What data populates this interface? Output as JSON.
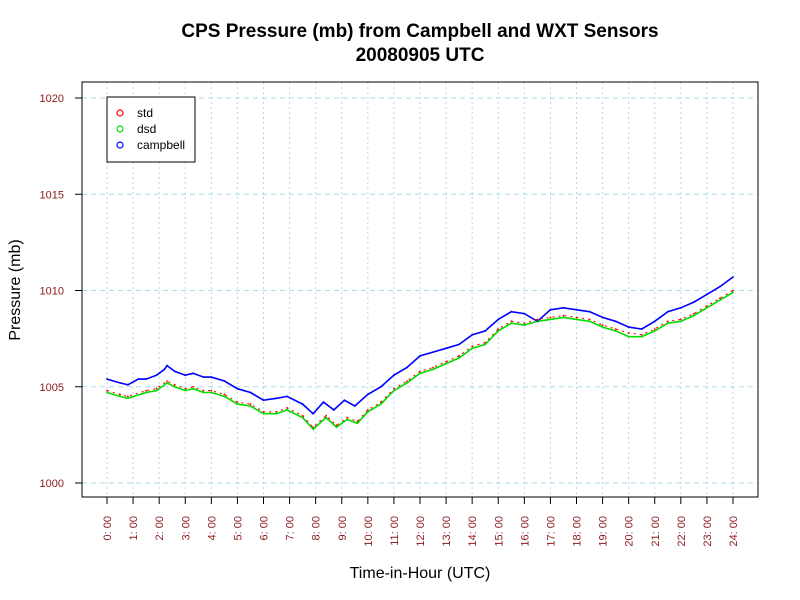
{
  "chart_data": {
    "type": "line",
    "title": "CPS Pressure (mb) from Campbell and WXT Sensors",
    "subtitle": "20080905  UTC",
    "xlabel": "Time-in-Hour (UTC)",
    "ylabel": "Pressure (mb)",
    "xlim": [
      0,
      24
    ],
    "ylim": [
      1000,
      1020
    ],
    "x_ticks": [
      0,
      1,
      2,
      3,
      4,
      5,
      6,
      7,
      8,
      9,
      10,
      11,
      12,
      13,
      14,
      15,
      16,
      17,
      18,
      19,
      20,
      21,
      22,
      23,
      24
    ],
    "x_tick_labels": [
      "0: 00",
      "1: 00",
      "2: 00",
      "3: 00",
      "4: 00",
      "5: 00",
      "6: 00",
      "7: 00",
      "8: 00",
      "9: 00",
      "10: 00",
      "11: 00",
      "12: 00",
      "13: 00",
      "14: 00",
      "15: 00",
      "16: 00",
      "17: 00",
      "18: 00",
      "19: 00",
      "20: 00",
      "21: 00",
      "22: 00",
      "23: 00",
      "24: 00"
    ],
    "y_ticks": [
      1000,
      1005,
      1010,
      1015,
      1020
    ],
    "y_tick_labels": [
      "1000",
      "1005",
      "1010",
      "1015",
      "1020"
    ],
    "grid": true,
    "legend_position": "top-left",
    "series": [
      {
        "name": "std",
        "color": "#ff0000",
        "x": [
          0,
          0.5,
          0.8,
          1.5,
          1.9,
          2.3,
          2.6,
          3.0,
          3.3,
          3.7,
          4.0,
          4.5,
          5.0,
          5.5,
          6.0,
          6.5,
          6.9,
          7.5,
          7.9,
          8.4,
          8.8,
          9.2,
          9.6,
          10.0,
          10.5,
          11.0,
          11.5,
          12.0,
          12.5,
          13.0,
          13.5,
          14.0,
          14.5,
          15.0,
          15.5,
          16.0,
          16.5,
          17.0,
          17.5,
          18.0,
          18.5,
          19.0,
          19.5,
          20.0,
          20.5,
          21.0,
          21.5,
          22.0,
          22.5,
          23.0,
          23.5,
          24.0
        ],
        "y": [
          1004.8,
          1004.6,
          1004.5,
          1004.8,
          1004.9,
          1005.3,
          1005.1,
          1004.9,
          1005.0,
          1004.8,
          1004.8,
          1004.6,
          1004.2,
          1004.1,
          1003.7,
          1003.7,
          1003.9,
          1003.5,
          1002.9,
          1003.5,
          1003.0,
          1003.4,
          1003.2,
          1003.8,
          1004.2,
          1004.9,
          1005.3,
          1005.8,
          1006.0,
          1006.3,
          1006.6,
          1007.1,
          1007.3,
          1008.0,
          1008.4,
          1008.3,
          1008.5,
          1008.6,
          1008.7,
          1008.6,
          1008.5,
          1008.2,
          1008.0,
          1007.8,
          1007.7,
          1008.0,
          1008.4,
          1008.5,
          1008.8,
          1009.2,
          1009.6,
          1010.0
        ]
      },
      {
        "name": "dsd",
        "color": "#00dd00",
        "x": [
          0,
          0.5,
          0.8,
          1.5,
          1.9,
          2.3,
          2.6,
          3.0,
          3.3,
          3.7,
          4.0,
          4.5,
          5.0,
          5.5,
          6.0,
          6.5,
          6.9,
          7.5,
          7.9,
          8.4,
          8.8,
          9.2,
          9.6,
          10.0,
          10.5,
          11.0,
          11.5,
          12.0,
          12.5,
          13.0,
          13.5,
          14.0,
          14.5,
          15.0,
          15.5,
          16.0,
          16.5,
          17.0,
          17.5,
          18.0,
          18.5,
          19.0,
          19.5,
          20.0,
          20.5,
          21.0,
          21.5,
          22.0,
          22.5,
          23.0,
          23.5,
          24.0
        ],
        "y": [
          1004.7,
          1004.5,
          1004.4,
          1004.7,
          1004.8,
          1005.2,
          1005.0,
          1004.8,
          1004.9,
          1004.7,
          1004.7,
          1004.5,
          1004.1,
          1004.0,
          1003.6,
          1003.6,
          1003.8,
          1003.4,
          1002.8,
          1003.4,
          1002.9,
          1003.3,
          1003.1,
          1003.7,
          1004.1,
          1004.8,
          1005.2,
          1005.7,
          1005.9,
          1006.2,
          1006.5,
          1007.0,
          1007.2,
          1007.9,
          1008.3,
          1008.2,
          1008.4,
          1008.5,
          1008.6,
          1008.5,
          1008.4,
          1008.1,
          1007.9,
          1007.6,
          1007.6,
          1007.9,
          1008.3,
          1008.4,
          1008.7,
          1009.1,
          1009.5,
          1009.9
        ]
      },
      {
        "name": "campbell",
        "color": "#0000ff",
        "x": [
          0,
          0.5,
          0.8,
          1.2,
          1.5,
          1.9,
          2.2,
          2.3,
          2.6,
          3.0,
          3.3,
          3.7,
          4.0,
          4.5,
          5.0,
          5.5,
          6.0,
          6.5,
          6.9,
          7.5,
          7.9,
          8.3,
          8.7,
          9.1,
          9.5,
          10.0,
          10.5,
          11.0,
          11.5,
          12.0,
          12.5,
          13.0,
          13.5,
          14.0,
          14.5,
          15.0,
          15.5,
          16.0,
          16.5,
          17.0,
          17.5,
          18.0,
          18.5,
          19.0,
          19.5,
          20.0,
          20.5,
          21.0,
          21.5,
          22.0,
          22.5,
          23.0,
          23.5,
          24.0
        ],
        "y": [
          1005.4,
          1005.2,
          1005.1,
          1005.4,
          1005.4,
          1005.6,
          1005.9,
          1006.1,
          1005.8,
          1005.6,
          1005.7,
          1005.5,
          1005.5,
          1005.3,
          1004.9,
          1004.7,
          1004.3,
          1004.4,
          1004.5,
          1004.1,
          1003.6,
          1004.2,
          1003.8,
          1004.3,
          1004.0,
          1004.6,
          1005.0,
          1005.6,
          1006.0,
          1006.6,
          1006.8,
          1007.0,
          1007.2,
          1007.7,
          1007.9,
          1008.5,
          1008.9,
          1008.8,
          1008.4,
          1009.0,
          1009.1,
          1009.0,
          1008.9,
          1008.6,
          1008.4,
          1008.1,
          1008.0,
          1008.4,
          1008.9,
          1009.1,
          1009.4,
          1009.8,
          1010.2,
          1010.7
        ]
      }
    ]
  }
}
